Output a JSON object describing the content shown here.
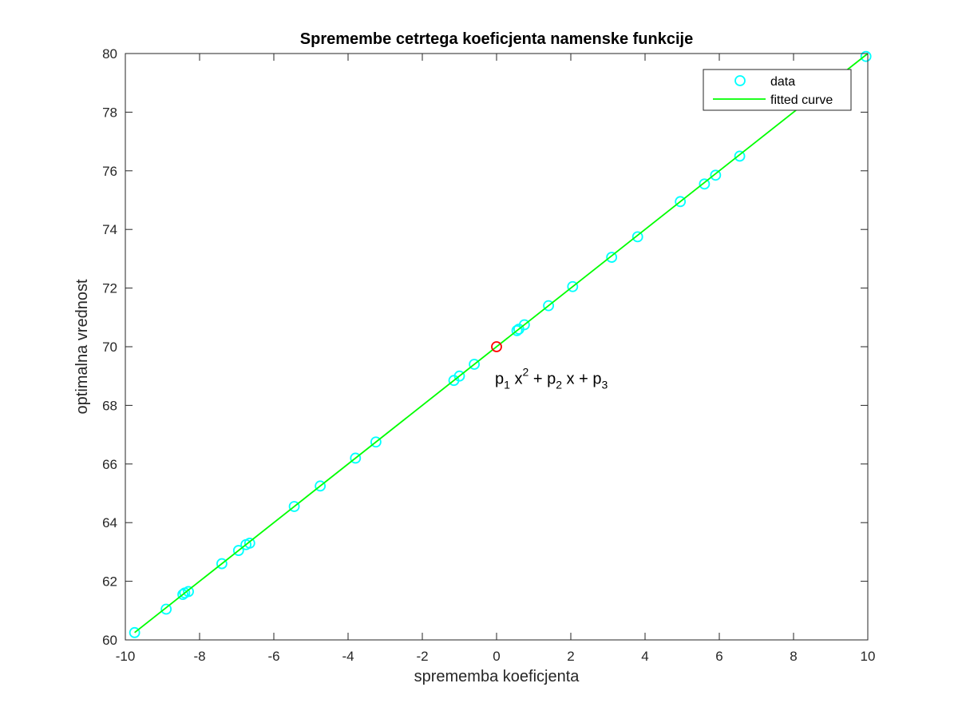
{
  "chart_data": {
    "type": "scatter",
    "title": "Spremembe cetrtega koeficjenta namenske funkcije",
    "xlabel": "sprememba koeficjenta",
    "ylabel": "optimalna vrednost",
    "xlim": [
      -10,
      10
    ],
    "ylim": [
      60,
      80
    ],
    "xticks": [
      -10,
      -8,
      -6,
      -4,
      -2,
      0,
      2,
      4,
      6,
      8,
      10
    ],
    "yticks": [
      60,
      62,
      64,
      66,
      68,
      70,
      72,
      74,
      76,
      78,
      80
    ],
    "grid": false,
    "legend_position": "top-right",
    "series": [
      {
        "name": "data",
        "kind": "markers",
        "marker": "circle-open",
        "color": "#00FFFF",
        "x": [
          -9.75,
          -8.9,
          -8.45,
          -8.4,
          -8.3,
          -7.4,
          -6.95,
          -6.75,
          -6.65,
          -5.45,
          -4.75,
          -3.8,
          -3.25,
          -1.15,
          -1.0,
          -0.6,
          0.55,
          0.6,
          0.75,
          1.4,
          2.05,
          3.1,
          3.8,
          4.95,
          5.6,
          5.9,
          6.55,
          9.95
        ],
        "y": [
          60.25,
          61.05,
          61.55,
          61.6,
          61.65,
          62.6,
          63.05,
          63.25,
          63.3,
          64.55,
          65.25,
          66.2,
          66.75,
          68.85,
          69.0,
          69.4,
          70.55,
          70.6,
          70.75,
          71.4,
          72.05,
          73.05,
          73.75,
          74.95,
          75.55,
          75.85,
          76.5,
          79.9
        ]
      },
      {
        "name": "fitted curve",
        "kind": "line",
        "color": "#00FF00",
        "x": [
          -9.75,
          10
        ],
        "y": [
          60.25,
          80.0
        ]
      }
    ],
    "highlight_point": {
      "x": 0,
      "y": 70,
      "color": "#FF0000"
    },
    "annotation": {
      "text": "p1 x2 + p2 x + p3",
      "x": 0,
      "y": 68.9
    }
  }
}
